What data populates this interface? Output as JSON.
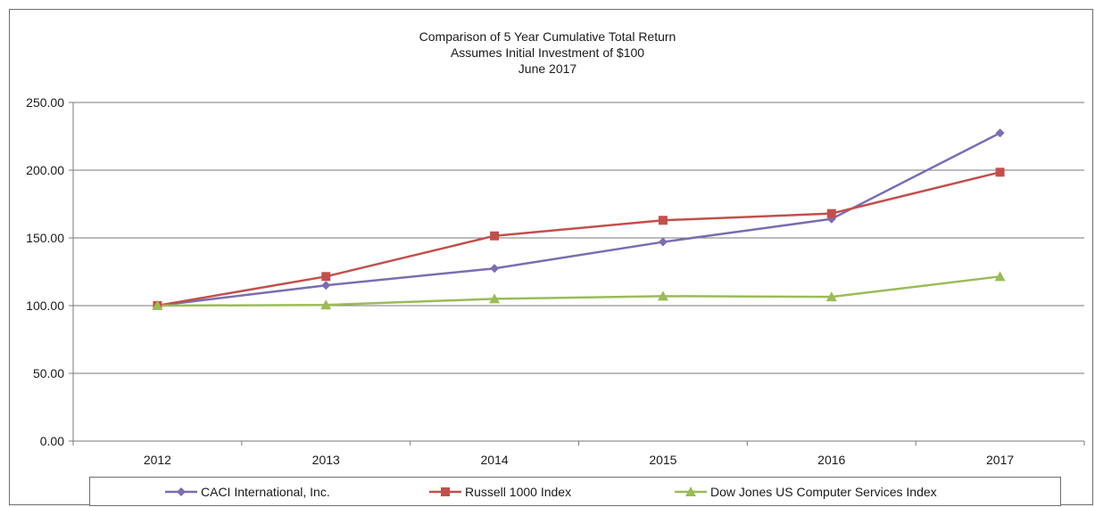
{
  "chart_data": {
    "type": "line",
    "title": "Comparison of 5 Year Cumulative  Total Return",
    "subtitle_lines": [
      "Assumes Initial Investment  of $100",
      "June 2017"
    ],
    "xlabel": "",
    "ylabel": "",
    "x": [
      "2012",
      "2013",
      "2014",
      "2015",
      "2016",
      "2017"
    ],
    "ylim": [
      0,
      250
    ],
    "yticks": [
      "0.00",
      "50.00",
      "100.00",
      "150.00",
      "200.00",
      "250.00"
    ],
    "grid": true,
    "legend_position": "bottom",
    "series": [
      {
        "name": "CACI International, Inc.",
        "color": "#7b6db0",
        "marker": "diamond",
        "values": [
          100,
          115,
          127.5,
          147,
          164,
          227.5
        ]
      },
      {
        "name": "Russell 1000 Index",
        "color": "#c0504d",
        "marker": "square",
        "values": [
          100,
          121.5,
          151.5,
          163,
          168,
          198.5
        ]
      },
      {
        "name": "Dow Jones US Computer Services Index",
        "color": "#9bbb59",
        "marker": "triangle",
        "values": [
          100,
          100.5,
          105,
          107,
          106.5,
          121.5
        ]
      }
    ]
  }
}
